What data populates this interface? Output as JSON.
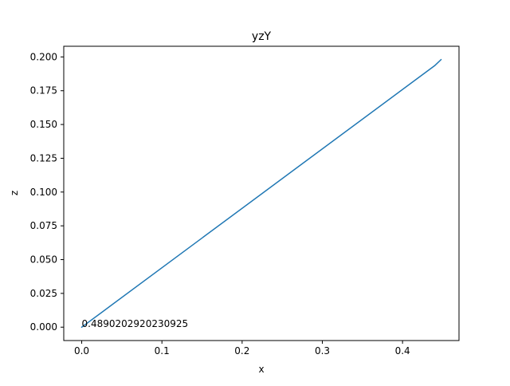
{
  "chart_data": {
    "type": "line",
    "title": "yzY",
    "xlabel": "x",
    "ylabel": "z",
    "xlim": [
      -0.0224,
      0.4704
    ],
    "ylim": [
      -0.0099,
      0.2079
    ],
    "grid": false,
    "x_ticks": [
      0.0,
      0.1,
      0.2,
      0.3,
      0.4
    ],
    "x_tick_labels": [
      "0.0",
      "0.1",
      "0.2",
      "0.3",
      "0.4"
    ],
    "y_ticks": [
      0.0,
      0.025,
      0.05,
      0.075,
      0.1,
      0.125,
      0.15,
      0.175,
      0.2
    ],
    "y_tick_labels": [
      "0.000",
      "0.025",
      "0.050",
      "0.075",
      "0.100",
      "0.125",
      "0.150",
      "0.175",
      "0.200"
    ],
    "series": [
      {
        "color": "#1f77b4",
        "x": [
          0.0,
          0.44,
          0.448
        ],
        "y": [
          0.0,
          0.1935,
          0.198
        ]
      }
    ],
    "annotations": [
      {
        "text": "0.4890202920230925",
        "x": 0.0,
        "y": 0.0
      }
    ]
  }
}
